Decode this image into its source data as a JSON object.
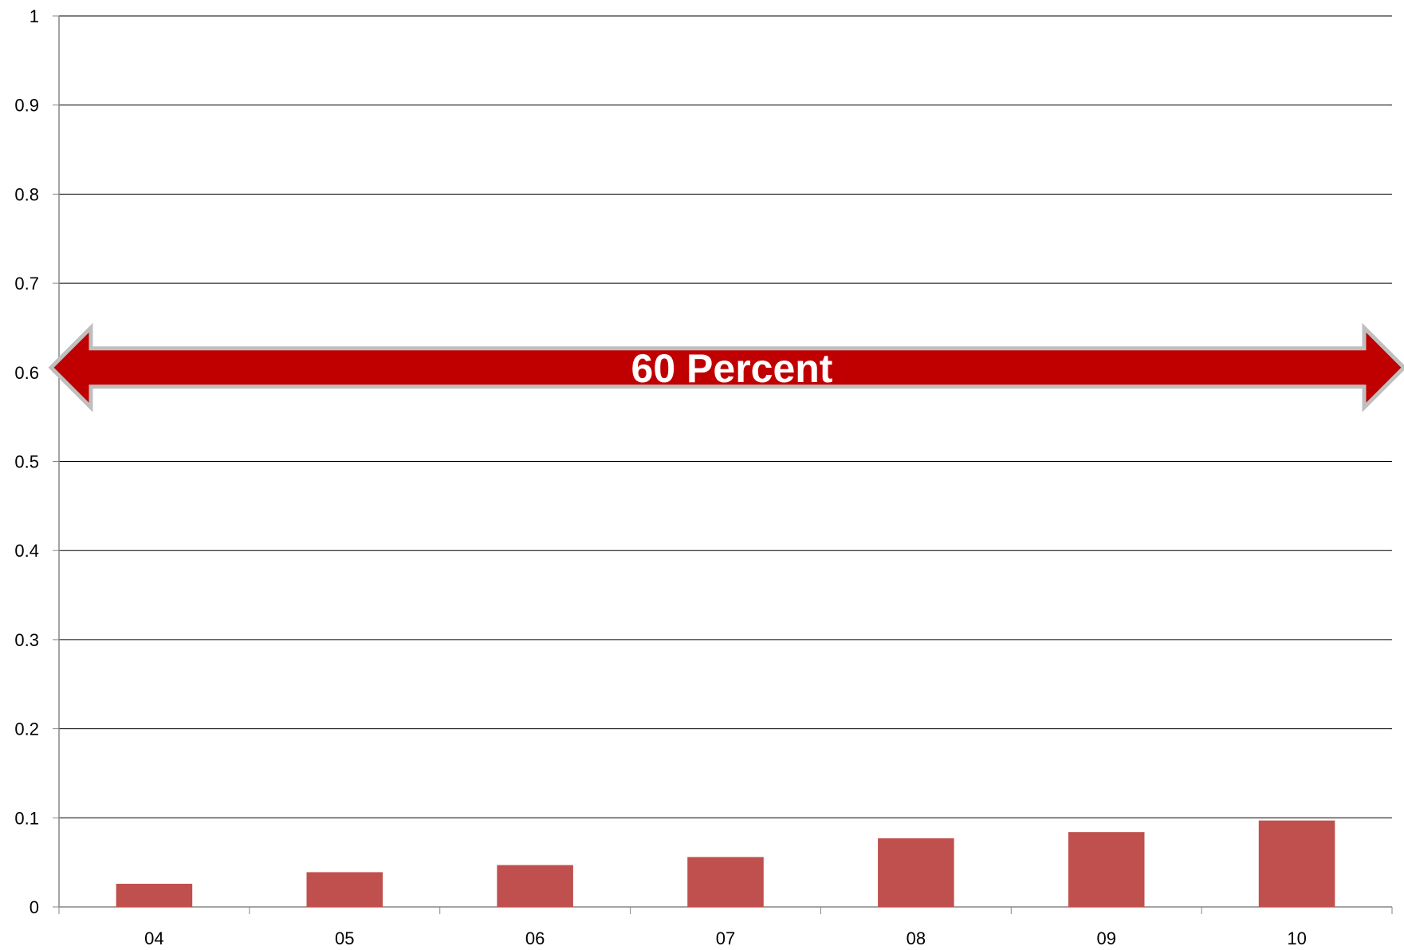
{
  "chart_data": {
    "type": "bar",
    "title": "",
    "xlabel": "",
    "ylabel": "",
    "categories": [
      "04",
      "05",
      "06",
      "07",
      "08",
      "09",
      "10"
    ],
    "values": [
      0.026,
      0.039,
      0.047,
      0.056,
      0.077,
      0.084,
      0.097
    ],
    "ylim": [
      0,
      1
    ],
    "yticks": [
      "0",
      "0.1",
      "0.2",
      "0.3",
      "0.4",
      "0.5",
      "0.6",
      "0.7",
      "0.8",
      "0.9",
      "1"
    ],
    "grid": true,
    "legend": "none",
    "bar_color": "#C0504D",
    "annotation": {
      "text": "60 Percent",
      "value": 0.6,
      "shape": "double-headed-arrow",
      "fill_color": "#C00000",
      "outline_color": "#BFBFBF"
    }
  }
}
